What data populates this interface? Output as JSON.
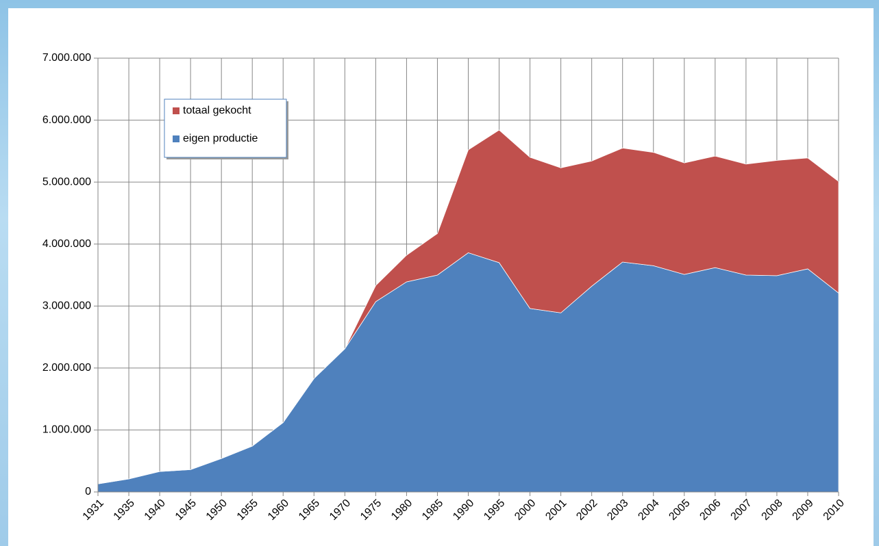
{
  "chart_data": {
    "type": "stacked-area",
    "categories": [
      "1931",
      "1935",
      "1940",
      "1945",
      "1950",
      "1955",
      "1960",
      "1965",
      "1970",
      "1975",
      "1980",
      "1985",
      "1990",
      "1995",
      "2000",
      "2001",
      "2002",
      "2003",
      "2004",
      "2005",
      "2006",
      "2007",
      "2008",
      "2009",
      "2010"
    ],
    "series": [
      {
        "name": "eigen productie",
        "color": "#4f81bd",
        "values": [
          130000,
          210000,
          330000,
          360000,
          540000,
          740000,
          1120000,
          1830000,
          2310000,
          3070000,
          3390000,
          3500000,
          3860000,
          3700000,
          2960000,
          2890000,
          3320000,
          3710000,
          3650000,
          3510000,
          3620000,
          3500000,
          3490000,
          3600000,
          3210000
        ]
      },
      {
        "name": "totaal gekocht",
        "color": "#c0504d",
        "values": [
          0,
          0,
          0,
          0,
          0,
          0,
          0,
          0,
          0,
          260000,
          430000,
          670000,
          1660000,
          2140000,
          2440000,
          2340000,
          2020000,
          1840000,
          1830000,
          1800000,
          1800000,
          1790000,
          1860000,
          1790000,
          1800000
        ]
      }
    ],
    "ylim": [
      0,
      7000000
    ],
    "yticks": [
      0,
      {
        "value": 1000000,
        "label": "1.000.000"
      },
      {
        "value": 2000000,
        "label": "2.000.000"
      },
      {
        "value": 3000000,
        "label": "3.000.000"
      },
      {
        "value": 4000000,
        "label": "4.000.000"
      },
      {
        "value": 5000000,
        "label": "5.000.000"
      },
      {
        "value": 6000000,
        "label": "6.000.000"
      },
      {
        "value": 7000000,
        "label": "7.000.000"
      }
    ],
    "grid": true,
    "legend": "top-left"
  }
}
